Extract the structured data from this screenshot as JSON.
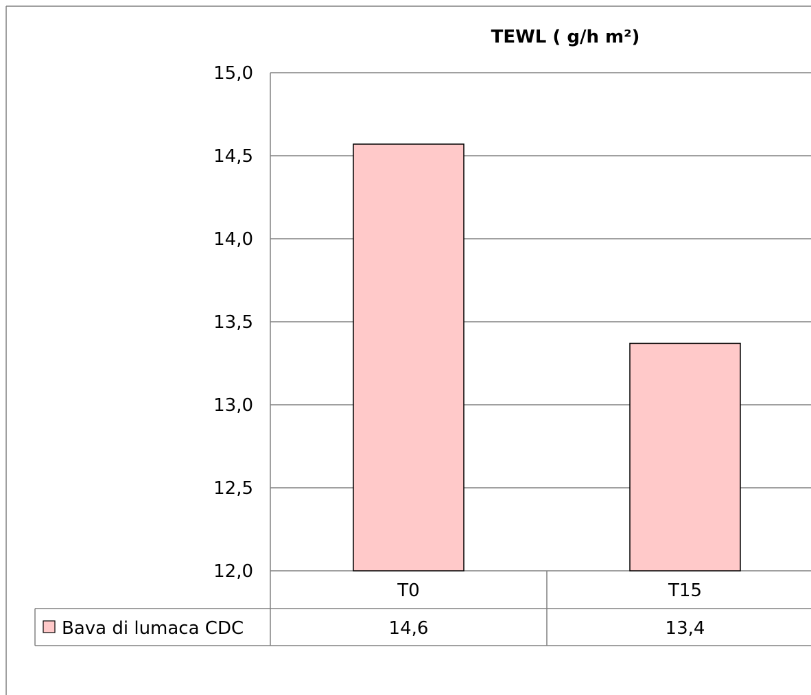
{
  "chart_data": {
    "type": "bar",
    "title": "TEWL  ( g/h m²)",
    "categories": [
      "T0",
      "T15"
    ],
    "series": [
      {
        "name": "Bava di lumaca CDC",
        "values": [
          14.57,
          13.37
        ],
        "table_values": [
          "14,6",
          "13,4"
        ]
      }
    ],
    "ylim": [
      12.0,
      15.0
    ],
    "yticks": [
      "12,0",
      "12,5",
      "13,0",
      "13,5",
      "14,0",
      "14,5",
      "15,0"
    ],
    "ytick_values": [
      12.0,
      12.5,
      13.0,
      13.5,
      14.0,
      14.5,
      15.0
    ],
    "grid": true,
    "legend": "data-table-left",
    "colors": {
      "bar_fill": "#ffc9c9",
      "bar_stroke": "#000000",
      "grid": "#808080",
      "frame": "#808080"
    }
  }
}
